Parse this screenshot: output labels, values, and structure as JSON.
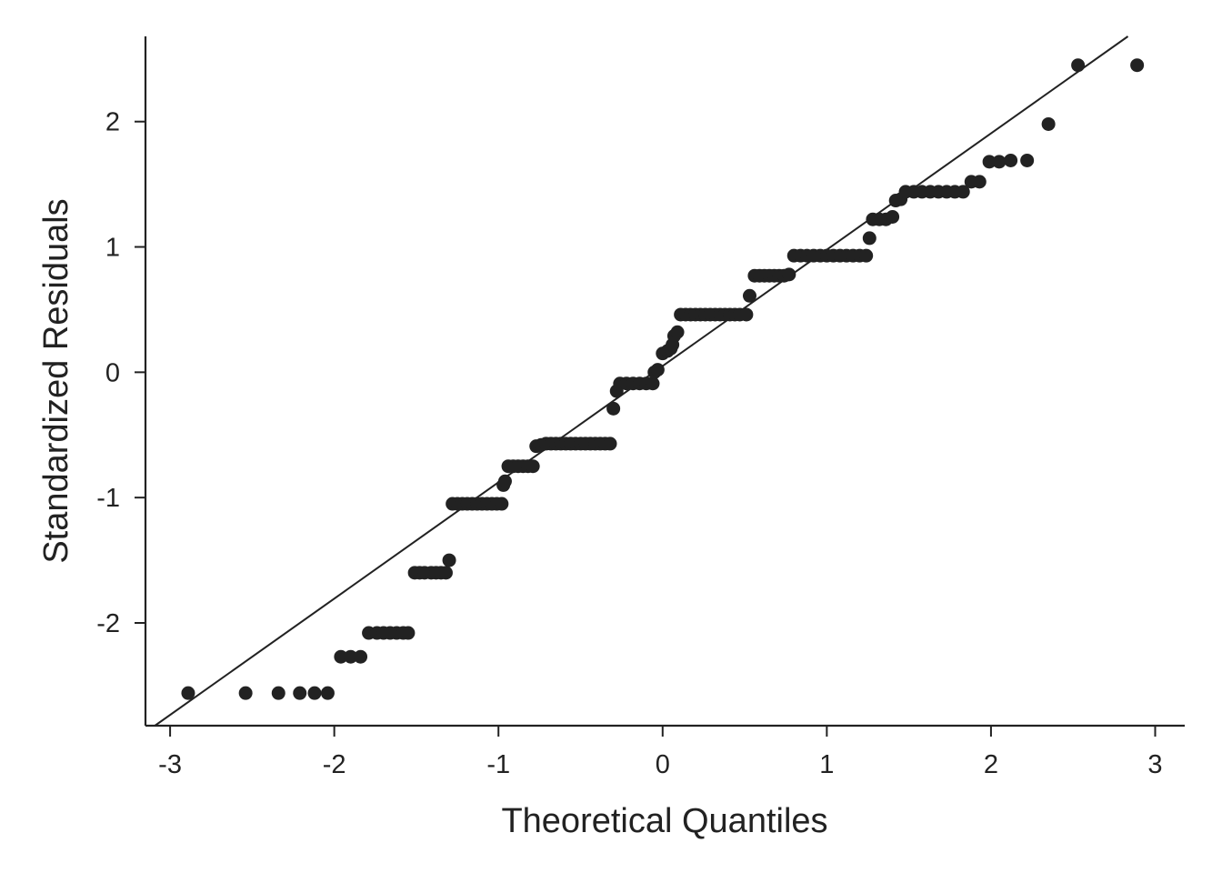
{
  "chart_data": {
    "type": "scatter",
    "title": "",
    "xlabel": "Theoretical Quantiles",
    "ylabel": "Standardized Residuals",
    "xlim": [
      -3.15,
      3.18
    ],
    "ylim": [
      -2.82,
      2.68
    ],
    "xticks": [
      -3,
      -2,
      -1,
      0,
      1,
      2,
      3
    ],
    "yticks": [
      -2,
      -1,
      0,
      1,
      2
    ],
    "xtick_labels": [
      "-3",
      "-2",
      "-1",
      "0",
      "1",
      "2",
      "3"
    ],
    "ytick_labels": [
      "-2",
      "-1",
      "0",
      "1",
      "2"
    ],
    "grid": false,
    "reference_line": {
      "slope": 0.928,
      "intercept": 0.05
    },
    "point_color": "#222222",
    "line_color": "#222222",
    "points": [
      [
        -2.89,
        -2.56
      ],
      [
        -2.54,
        -2.56
      ],
      [
        -2.34,
        -2.56
      ],
      [
        -2.21,
        -2.56
      ],
      [
        -2.12,
        -2.56
      ],
      [
        -2.04,
        -2.56
      ],
      [
        -1.96,
        -2.27
      ],
      [
        -1.9,
        -2.27
      ],
      [
        -1.84,
        -2.27
      ],
      [
        -1.79,
        -2.08
      ],
      [
        -1.74,
        -2.08
      ],
      [
        -1.7,
        -2.08
      ],
      [
        -1.66,
        -2.08
      ],
      [
        -1.62,
        -2.08
      ],
      [
        -1.58,
        -2.08
      ],
      [
        -1.55,
        -2.08
      ],
      [
        -1.51,
        -1.6
      ],
      [
        -1.48,
        -1.6
      ],
      [
        -1.45,
        -1.6
      ],
      [
        -1.41,
        -1.6
      ],
      [
        -1.38,
        -1.6
      ],
      [
        -1.35,
        -1.6
      ],
      [
        -1.32,
        -1.6
      ],
      [
        -1.3,
        -1.5
      ],
      [
        -1.28,
        -1.05
      ],
      [
        -1.25,
        -1.05
      ],
      [
        -1.22,
        -1.05
      ],
      [
        -1.19,
        -1.05
      ],
      [
        -1.16,
        -1.05
      ],
      [
        -1.13,
        -1.05
      ],
      [
        -1.1,
        -1.05
      ],
      [
        -1.07,
        -1.05
      ],
      [
        -1.04,
        -1.05
      ],
      [
        -1.01,
        -1.05
      ],
      [
        -0.98,
        -1.05
      ],
      [
        -0.97,
        -0.9
      ],
      [
        -0.96,
        -0.87
      ],
      [
        -0.94,
        -0.75
      ],
      [
        -0.91,
        -0.75
      ],
      [
        -0.88,
        -0.75
      ],
      [
        -0.85,
        -0.75
      ],
      [
        -0.82,
        -0.75
      ],
      [
        -0.79,
        -0.75
      ],
      [
        -0.77,
        -0.59
      ],
      [
        -0.74,
        -0.58
      ],
      [
        -0.71,
        -0.57
      ],
      [
        -0.68,
        -0.57
      ],
      [
        -0.65,
        -0.57
      ],
      [
        -0.62,
        -0.57
      ],
      [
        -0.59,
        -0.57
      ],
      [
        -0.56,
        -0.57
      ],
      [
        -0.53,
        -0.57
      ],
      [
        -0.5,
        -0.57
      ],
      [
        -0.47,
        -0.57
      ],
      [
        -0.44,
        -0.57
      ],
      [
        -0.41,
        -0.57
      ],
      [
        -0.38,
        -0.57
      ],
      [
        -0.35,
        -0.57
      ],
      [
        -0.32,
        -0.57
      ],
      [
        -0.3,
        -0.29
      ],
      [
        -0.28,
        -0.15
      ],
      [
        -0.26,
        -0.09
      ],
      [
        -0.22,
        -0.09
      ],
      [
        -0.18,
        -0.09
      ],
      [
        -0.14,
        -0.09
      ],
      [
        -0.1,
        -0.09
      ],
      [
        -0.06,
        -0.09
      ],
      [
        -0.05,
        0.0
      ],
      [
        -0.03,
        0.02
      ],
      [
        0.0,
        0.15
      ],
      [
        0.03,
        0.17
      ],
      [
        0.05,
        0.19
      ],
      [
        0.06,
        0.22
      ],
      [
        0.07,
        0.29
      ],
      [
        0.09,
        0.32
      ],
      [
        0.11,
        0.46
      ],
      [
        0.14,
        0.46
      ],
      [
        0.17,
        0.46
      ],
      [
        0.2,
        0.46
      ],
      [
        0.23,
        0.46
      ],
      [
        0.26,
        0.46
      ],
      [
        0.29,
        0.46
      ],
      [
        0.32,
        0.46
      ],
      [
        0.35,
        0.46
      ],
      [
        0.38,
        0.46
      ],
      [
        0.41,
        0.46
      ],
      [
        0.44,
        0.46
      ],
      [
        0.47,
        0.46
      ],
      [
        0.51,
        0.46
      ],
      [
        0.53,
        0.61
      ],
      [
        0.56,
        0.77
      ],
      [
        0.59,
        0.77
      ],
      [
        0.62,
        0.77
      ],
      [
        0.65,
        0.77
      ],
      [
        0.68,
        0.77
      ],
      [
        0.71,
        0.77
      ],
      [
        0.74,
        0.77
      ],
      [
        0.77,
        0.78
      ],
      [
        0.8,
        0.93
      ],
      [
        0.84,
        0.93
      ],
      [
        0.88,
        0.93
      ],
      [
        0.92,
        0.93
      ],
      [
        0.96,
        0.93
      ],
      [
        1.0,
        0.93
      ],
      [
        1.04,
        0.93
      ],
      [
        1.08,
        0.93
      ],
      [
        1.12,
        0.93
      ],
      [
        1.16,
        0.93
      ],
      [
        1.2,
        0.93
      ],
      [
        1.24,
        0.93
      ],
      [
        1.26,
        1.07
      ],
      [
        1.28,
        1.22
      ],
      [
        1.32,
        1.22
      ],
      [
        1.36,
        1.22
      ],
      [
        1.4,
        1.24
      ],
      [
        1.42,
        1.37
      ],
      [
        1.45,
        1.38
      ],
      [
        1.48,
        1.44
      ],
      [
        1.53,
        1.44
      ],
      [
        1.58,
        1.44
      ],
      [
        1.63,
        1.44
      ],
      [
        1.68,
        1.44
      ],
      [
        1.73,
        1.44
      ],
      [
        1.78,
        1.44
      ],
      [
        1.83,
        1.44
      ],
      [
        1.88,
        1.52
      ],
      [
        1.93,
        1.52
      ],
      [
        1.99,
        1.68
      ],
      [
        2.05,
        1.68
      ],
      [
        2.12,
        1.69
      ],
      [
        2.22,
        1.69
      ],
      [
        2.35,
        1.98
      ],
      [
        2.53,
        2.45
      ],
      [
        2.89,
        2.45
      ]
    ]
  }
}
